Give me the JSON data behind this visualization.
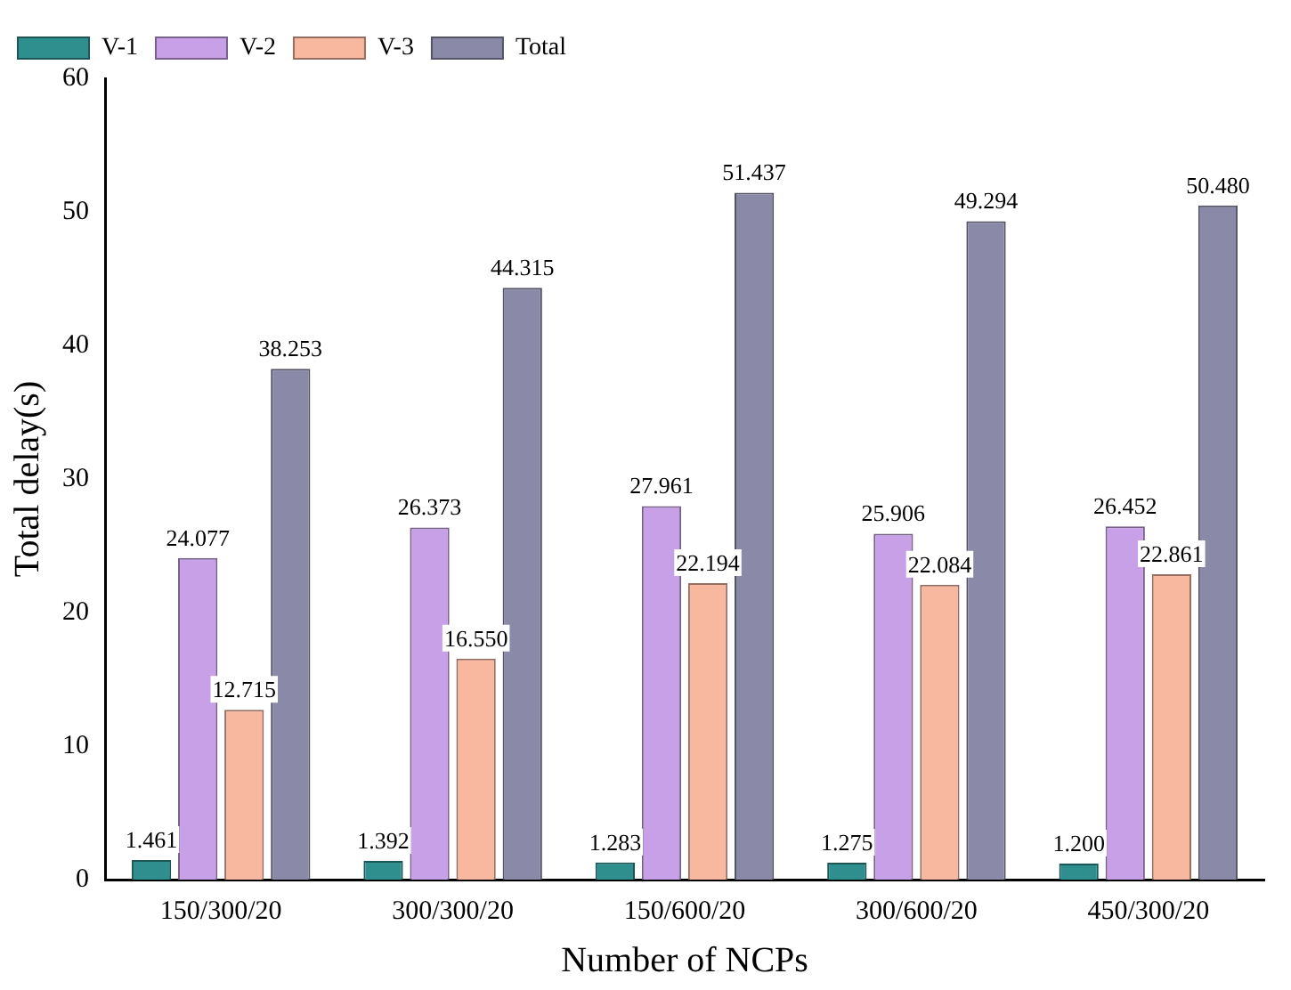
{
  "chart_data": {
    "type": "bar",
    "xlabel": "Number of NCPs",
    "ylabel": "Total delay(s)",
    "categories": [
      "150/300/20",
      "300/300/20",
      "150/600/20",
      "300/600/20",
      "450/300/20"
    ],
    "series": [
      {
        "name": "V-1",
        "color": "#2f8f8f",
        "values": [
          1.461,
          1.392,
          1.283,
          1.275,
          1.2
        ],
        "value_labels": [
          "1.461",
          "1.392",
          "1.283",
          "1.275",
          "1.200"
        ]
      },
      {
        "name": "V-2",
        "color": "#c8a0e8",
        "values": [
          24.077,
          26.373,
          27.961,
          25.906,
          26.452
        ],
        "value_labels": [
          "24.077",
          "26.373",
          "27.961",
          "25.906",
          "26.452"
        ]
      },
      {
        "name": "V-3",
        "color": "#f8b8a0",
        "values": [
          12.715,
          16.55,
          22.194,
          22.084,
          22.861
        ],
        "value_labels": [
          "12.715",
          "16.550",
          "22.194",
          "22.084",
          "22.861"
        ]
      },
      {
        "name": "Total",
        "color": "#8a8aa8",
        "values": [
          38.253,
          44.315,
          51.437,
          49.294,
          50.48
        ],
        "value_labels": [
          "38.253",
          "44.315",
          "51.437",
          "49.294",
          "50.480"
        ]
      }
    ],
    "ylim": [
      0,
      60
    ],
    "yticks": [
      0,
      10,
      20,
      30,
      40,
      50,
      60
    ],
    "grid": false,
    "legend": "top left"
  }
}
